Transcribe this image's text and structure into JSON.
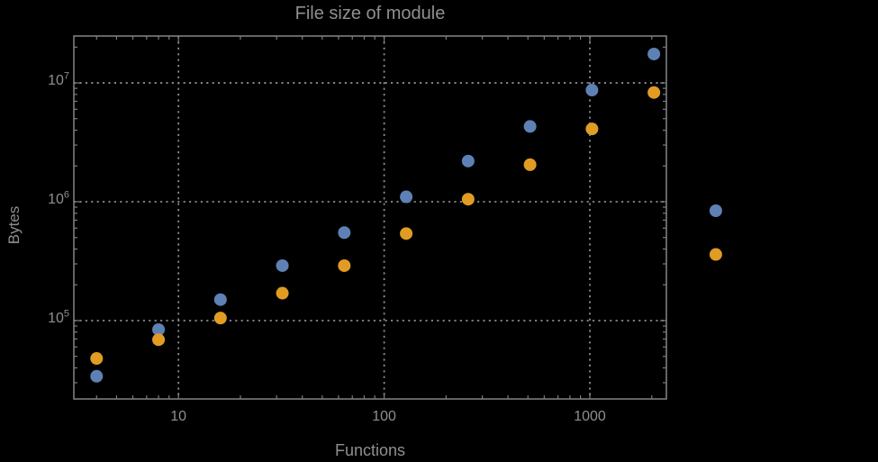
{
  "title": "File size of module",
  "colors": {
    "background": "#000000",
    "frame": "#7d7d7d",
    "grid": "#898989",
    "text": "#8f8f8f",
    "series_blue": "#5E81B5",
    "series_orange": "#E19C24"
  },
  "chart_data": {
    "type": "scatter",
    "title": "File size of module",
    "xlabel": "Functions",
    "ylabel": "Bytes",
    "xscale": "log",
    "yscale": "log",
    "xlim": [
      3.1,
      2355
    ],
    "ylim": [
      21900,
      24800000
    ],
    "grid": "dotted-major",
    "legend": "none",
    "frame": true,
    "x_ticks": [
      {
        "value": 10,
        "label": "10"
      },
      {
        "value": 100,
        "label": "100"
      },
      {
        "value": 1000,
        "label": "1000"
      }
    ],
    "y_ticks": [
      {
        "value": 100000,
        "base": "10",
        "exp": "5"
      },
      {
        "value": 1000000,
        "base": "10",
        "exp": "6"
      },
      {
        "value": 10000000,
        "base": "10",
        "exp": "7"
      }
    ],
    "x_minor_decades": [
      1,
      1000
    ],
    "y_minor_decades": [
      10000,
      10000000
    ],
    "points_clipped_to_frame": false,
    "series": [
      {
        "name": "blue-series",
        "color": "#5E81B5",
        "x": [
          4,
          8,
          16,
          32,
          64,
          128,
          256,
          512,
          1024,
          2048,
          4096
        ],
        "y": [
          34000,
          84000,
          150000,
          290000,
          550000,
          1100000,
          2200000,
          4300000,
          8700000,
          17500000,
          840000
        ]
      },
      {
        "name": "orange-series",
        "color": "#E19C24",
        "x": [
          4,
          8,
          16,
          32,
          64,
          128,
          256,
          512,
          1024,
          2048,
          4096
        ],
        "y": [
          48000,
          69000,
          105000,
          170000,
          290000,
          540000,
          1050000,
          2050000,
          4100000,
          8300000,
          360000
        ]
      }
    ]
  }
}
